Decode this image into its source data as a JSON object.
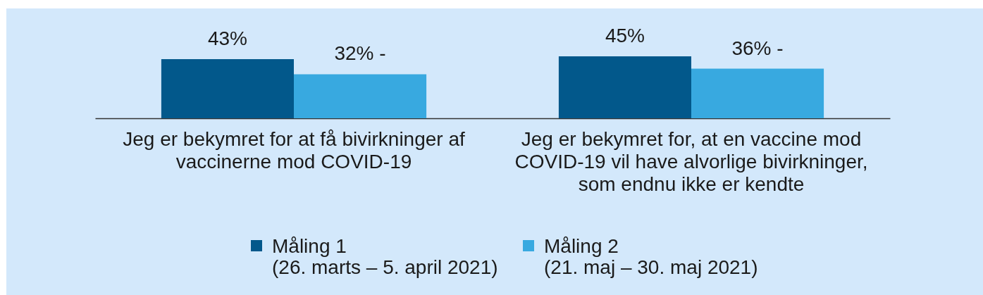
{
  "chart_data": {
    "type": "bar",
    "categories": [
      "Jeg er bekymret for at få bivirkninger af vaccinerne mod COVID-19",
      "Jeg er bekymret for, at en vaccine mod COVID-19 vil have alvorlige bivirkninger, som endnu ikke er kendte"
    ],
    "series": [
      {
        "name": "Måling 1 (26. marts – 5. april 2021)",
        "color": "#02588b",
        "values": [
          43,
          45
        ],
        "value_labels": [
          "43%",
          "45%"
        ]
      },
      {
        "name": "Måling 2 (21. maj – 30. maj 2021)",
        "color": "#38a9e0",
        "values": [
          32,
          36
        ],
        "value_labels": [
          "32% -",
          "36% -"
        ]
      }
    ],
    "legend": "bottom"
  }
}
